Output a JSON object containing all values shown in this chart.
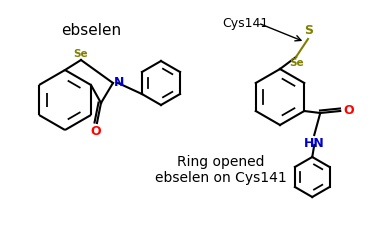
{
  "background_color": "#ffffff",
  "ebselen_label": "ebselen",
  "ebselen_label_color": "#000000",
  "Se_color": "#808000",
  "N_color": "#0000cd",
  "O_color": "#ff0000",
  "S_color": "#808000",
  "HN_color": "#0000cd",
  "bond_color": "#000000",
  "cys141_label": "Cys141",
  "cys141_label_color": "#000000",
  "ring_opened_label": "Ring opened\nebselen on Cys141",
  "ring_opened_color": "#000000",
  "lw": 1.5
}
